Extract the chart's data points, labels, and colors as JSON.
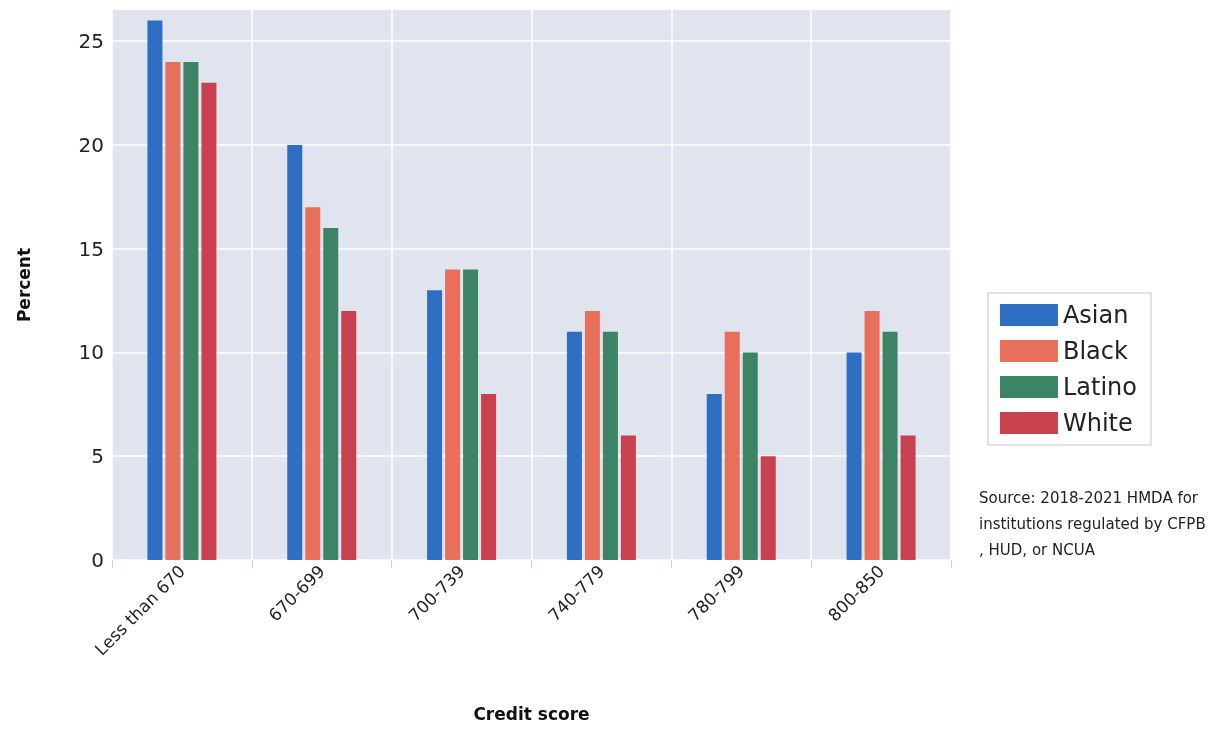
{
  "chart_data": {
    "type": "bar",
    "xlabel": "Credit score",
    "ylabel": "Percent",
    "categories": [
      "Less than 670",
      "670-699",
      "700-739",
      "740-779",
      "780-799",
      "800-850"
    ],
    "series": [
      {
        "name": "Asian",
        "color": "#2e6fc4",
        "values": [
          26,
          20,
          13,
          11,
          8,
          10
        ]
      },
      {
        "name": "Black",
        "color": "#e8705a",
        "values": [
          24,
          17,
          14,
          12,
          11,
          12
        ]
      },
      {
        "name": "Latino",
        "color": "#3d8467",
        "values": [
          24,
          16,
          14,
          11,
          10,
          11
        ]
      },
      {
        "name": "White",
        "color": "#c9414f",
        "values": [
          23,
          12,
          8,
          6,
          5,
          6
        ]
      }
    ],
    "ylim": [
      0,
      26.5
    ],
    "yticks": [
      0,
      5,
      10,
      15,
      20,
      25
    ],
    "grid": true,
    "legend": "right",
    "annotations": [
      "Source: 2018-2021 HMDA for institutions regulated by CFPB, HUD, or NCUA"
    ]
  }
}
